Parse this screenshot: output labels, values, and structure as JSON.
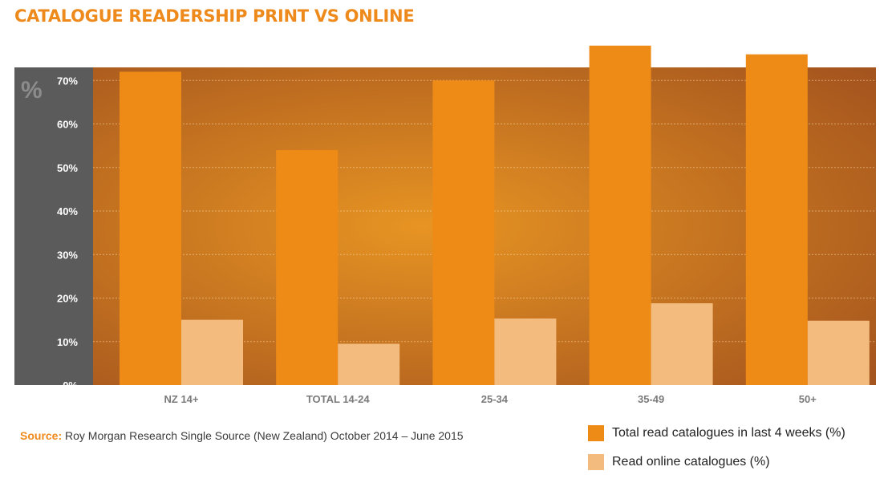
{
  "title": "CATALOGUE READERSHIP PRINT VS ONLINE",
  "source": {
    "label": "Source:",
    "text": "Roy Morgan Research Single Source (New Zealand) October 2014 – June 2015"
  },
  "colors": {
    "print": "#EE8B17",
    "online": "#F3BC7E",
    "axis_panel": "#5B5B5B",
    "plot_bg_center": "#E79423",
    "plot_bg_edge": "#A4541E",
    "tick_text": "#FFFFFF",
    "unit_text": "#8C8C8C"
  },
  "chart_data": {
    "type": "bar",
    "ylabel": "%",
    "ylim": [
      0,
      73
    ],
    "yticks": [
      0,
      10,
      20,
      30,
      40,
      50,
      60,
      70
    ],
    "ytick_labels": [
      "0%",
      "10%",
      "20%",
      "30%",
      "40%",
      "50%",
      "60%",
      "70%"
    ],
    "grid": true,
    "categories": [
      "NZ 14+",
      "TOTAL 14-24",
      "25-34",
      "35-49",
      "50+"
    ],
    "series": [
      {
        "name": "Total read catalogues in last 4 weeks (%)",
        "values": [
          72,
          54,
          70,
          78,
          76
        ]
      },
      {
        "name": "Read online catalogues (%)",
        "values": [
          15,
          9.5,
          15.3,
          18.8,
          14.8
        ]
      }
    ],
    "legend_position": "bottom-right"
  }
}
